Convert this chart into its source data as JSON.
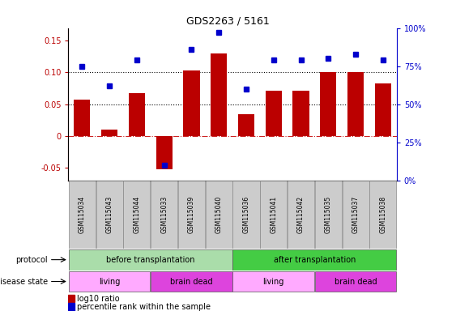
{
  "title": "GDS2263 / 5161",
  "samples": [
    "GSM115034",
    "GSM115043",
    "GSM115044",
    "GSM115033",
    "GSM115039",
    "GSM115040",
    "GSM115036",
    "GSM115041",
    "GSM115042",
    "GSM115035",
    "GSM115037",
    "GSM115038"
  ],
  "log10_ratio": [
    0.057,
    0.01,
    0.067,
    -0.053,
    0.103,
    0.13,
    0.034,
    0.071,
    0.071,
    0.1,
    0.1,
    0.083
  ],
  "percentile_rank": [
    0.75,
    0.62,
    0.79,
    0.1,
    0.86,
    0.97,
    0.6,
    0.79,
    0.79,
    0.8,
    0.83,
    0.79
  ],
  "ylim_left": [
    -0.07,
    0.17
  ],
  "ylim_right": [
    0.0,
    1.0
  ],
  "yticks_left": [
    -0.05,
    0.0,
    0.05,
    0.1,
    0.15
  ],
  "ytick_labels_left": [
    "-0.05",
    "0",
    "0.05",
    "0.10",
    "0.15"
  ],
  "yticks_right": [
    0.0,
    0.25,
    0.5,
    0.75,
    1.0
  ],
  "ytick_labels_right": [
    "0%",
    "25%",
    "50%",
    "75%",
    "100%"
  ],
  "bar_color": "#bb0000",
  "dot_color": "#0000cc",
  "zero_line_color": "#cc2222",
  "dotted_line_color": "#000000",
  "protocol_groups": [
    {
      "label": "before transplantation",
      "start": 0,
      "end": 6,
      "color": "#aaddaa"
    },
    {
      "label": "after transplantation",
      "start": 6,
      "end": 12,
      "color": "#44cc44"
    }
  ],
  "disease_groups": [
    {
      "label": "living",
      "start": 0,
      "end": 3,
      "color": "#ffaaff"
    },
    {
      "label": "brain dead",
      "start": 3,
      "end": 6,
      "color": "#dd44dd"
    },
    {
      "label": "living",
      "start": 6,
      "end": 9,
      "color": "#ffaaff"
    },
    {
      "label": "brain dead",
      "start": 9,
      "end": 12,
      "color": "#dd44dd"
    }
  ],
  "protocol_label": "protocol",
  "disease_label": "disease state",
  "legend_bar_label": "log10 ratio",
  "legend_dot_label": "percentile rank within the sample",
  "bg_color": "#ffffff",
  "sample_box_color": "#cccccc"
}
